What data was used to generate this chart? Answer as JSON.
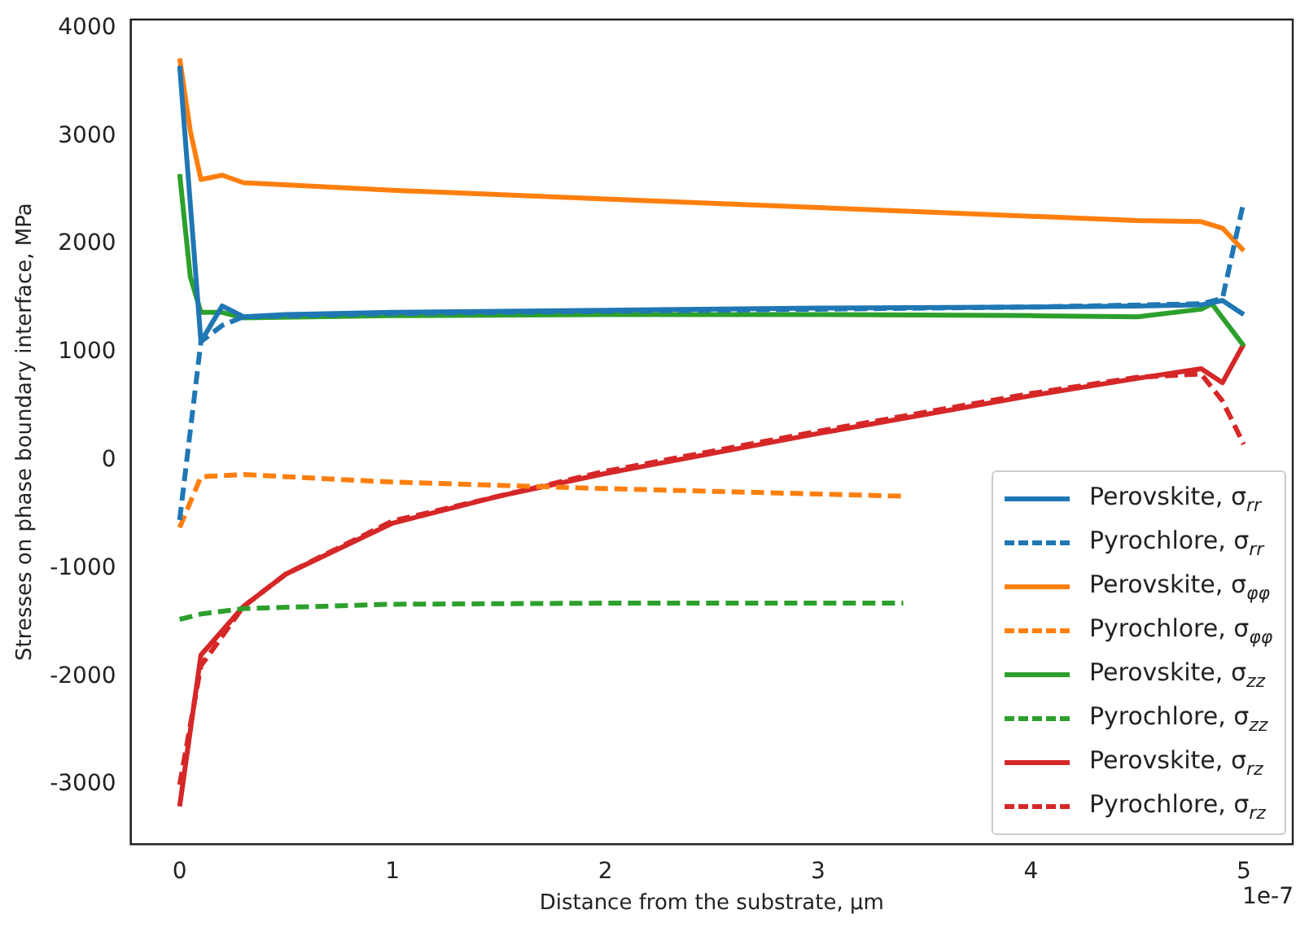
{
  "chart_data": {
    "type": "line",
    "xlabel": "Distance from the substrate, µm",
    "ylabel": "Stresses on phase boundary interface, MPa",
    "xlim": [
      -0.23,
      5.23
    ],
    "xticks": [
      0,
      1,
      2,
      3,
      4,
      5
    ],
    "ylim": [
      -3550,
      4080
    ],
    "yticks": [
      -3000,
      -2000,
      -1000,
      0,
      1000,
      2000,
      3000,
      4000
    ],
    "grid": false,
    "legend": "bottom right",
    "marker": "none",
    "annotations": [
      "1e-7"
    ],
    "series": [
      {
        "name": "Perovskite, σ$_{rr}$",
        "color": "#1f77b4",
        "line_style": "solid",
        "x": [
          0,
          0.1,
          0.2,
          0.3,
          0.5,
          1,
          2,
          3,
          4,
          4.5,
          4.8,
          4.9,
          5
        ],
        "values": [
          3650,
          1100,
          1430,
          1330,
          1350,
          1370,
          1390,
          1410,
          1420,
          1430,
          1440,
          1480,
          1350
        ]
      },
      {
        "name": "Pyrochlore, σ$_{rr}$",
        "color": "#1f77b4",
        "line_style": "dashed",
        "x": [
          0,
          0.1,
          0.2,
          0.3,
          1,
          2,
          3,
          4,
          4.8,
          4.9,
          5
        ],
        "values": [
          -550,
          1100,
          1250,
          1330,
          1360,
          1380,
          1400,
          1420,
          1450,
          1500,
          2400
        ]
      },
      {
        "name": "Perovskite, σ$_{φφ}$",
        "color": "#ff7f0e",
        "line_style": "solid",
        "x": [
          0,
          0.05,
          0.1,
          0.2,
          0.3,
          1,
          2,
          3,
          4,
          4.5,
          4.8,
          4.9,
          5
        ],
        "values": [
          3720,
          3050,
          2600,
          2640,
          2570,
          2500,
          2420,
          2340,
          2260,
          2220,
          2210,
          2150,
          1940
        ]
      },
      {
        "name": "Pyrochlore, σ$_{φφ}$",
        "color": "#ff7f0e",
        "line_style": "dashed",
        "x": [
          0,
          0.1,
          0.3,
          1,
          2,
          3,
          3.4
        ],
        "values": [
          -620,
          -150,
          -130,
          -200,
          -260,
          -310,
          -330
        ]
      },
      {
        "name": "Perovskite, σ$_{zz}$",
        "color": "#2ca02c",
        "line_style": "solid",
        "x": [
          0,
          0.05,
          0.1,
          0.2,
          0.3,
          1,
          2,
          3,
          4,
          4.5,
          4.8,
          4.85,
          5
        ],
        "values": [
          2650,
          1700,
          1370,
          1370,
          1320,
          1340,
          1350,
          1350,
          1340,
          1330,
          1400,
          1450,
          1060
        ]
      },
      {
        "name": "Pyrochlore, σ$_{zz}$",
        "color": "#2ca02c",
        "line_style": "dashed",
        "x": [
          0,
          0.1,
          0.3,
          1,
          2,
          3,
          3.4
        ],
        "values": [
          -1470,
          -1420,
          -1370,
          -1330,
          -1320,
          -1320,
          -1320
        ]
      },
      {
        "name": "Perovskite, σ$_{rz}$",
        "color": "#d62728",
        "line_style": "solid",
        "x": [
          0,
          0.1,
          0.3,
          0.5,
          1,
          1.5,
          2,
          3,
          4,
          4.5,
          4.8,
          4.9,
          5
        ],
        "values": [
          -3200,
          -1800,
          -1350,
          -1050,
          -580,
          -330,
          -120,
          250,
          600,
          760,
          850,
          720,
          1080
        ]
      },
      {
        "name": "Pyrochlore, σ$_{rz}$",
        "color": "#d62728",
        "line_style": "dashed",
        "x": [
          0,
          0.1,
          0.3,
          0.5,
          1,
          2,
          3,
          4,
          4.5,
          4.8,
          4.9,
          5
        ],
        "values": [
          -3000,
          -1900,
          -1350,
          -1050,
          -560,
          -100,
          270,
          620,
          770,
          800,
          550,
          150
        ]
      }
    ]
  }
}
